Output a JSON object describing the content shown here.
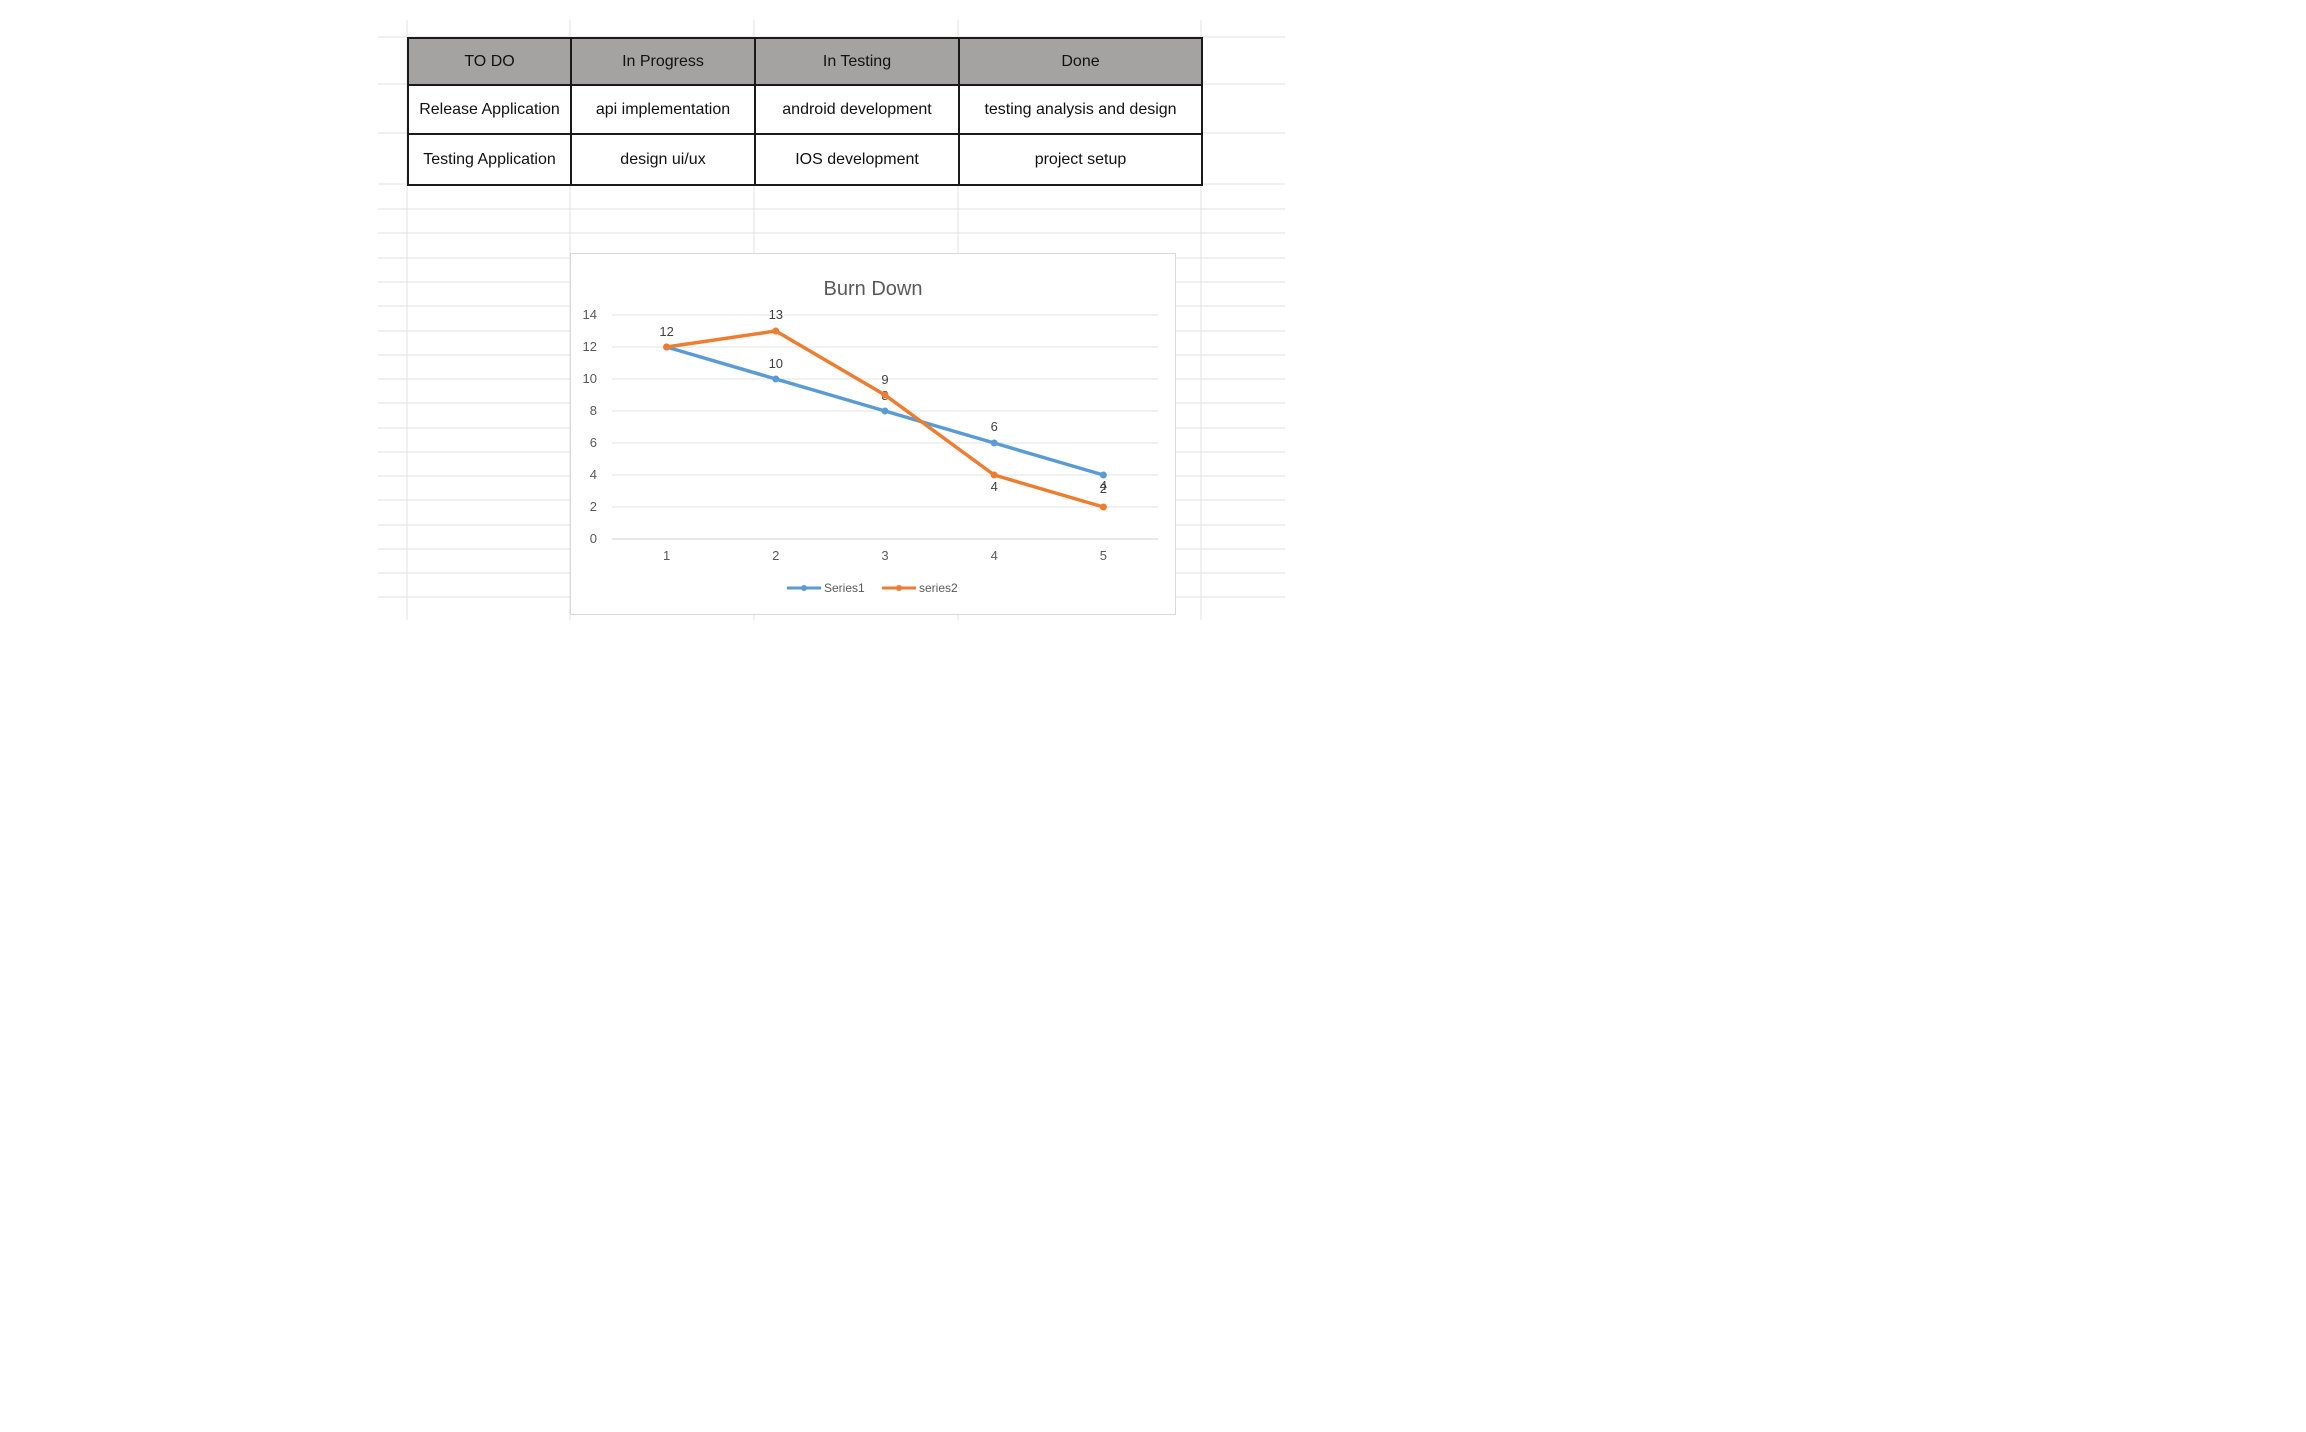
{
  "table": {
    "headers": [
      "TO DO",
      "In Progress",
      "In Testing",
      "Done"
    ],
    "rows": [
      [
        "Release Application",
        "api implementation",
        "android development",
        "testing analysis and design"
      ],
      [
        "Testing Application",
        "design ui/ux",
        "IOS development",
        "project setup"
      ]
    ],
    "header_color": "#a5a2a2"
  },
  "chart_data": {
    "type": "line",
    "title": "Burn Down",
    "x": [
      1,
      2,
      3,
      4,
      5
    ],
    "xlabel": "",
    "ylabel": "",
    "ylim": [
      0,
      14
    ],
    "yticks": [
      0,
      2,
      4,
      6,
      8,
      10,
      12,
      14
    ],
    "grid": true,
    "legend_position": "bottom",
    "data_labels": true,
    "series": [
      {
        "name": "Series1",
        "values": [
          12,
          10,
          8,
          6,
          4
        ],
        "color": "#5b9bd5"
      },
      {
        "name": "series2",
        "values": [
          12,
          13,
          9,
          4,
          2
        ],
        "color": "#ed7d31"
      }
    ]
  }
}
